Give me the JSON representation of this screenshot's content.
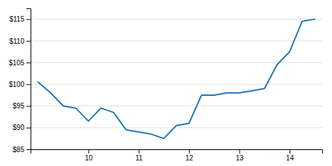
{
  "chart_data": {
    "type": "line",
    "x": [
      9.0,
      9.25,
      9.5,
      9.75,
      10.0,
      10.25,
      10.5,
      10.75,
      11.0,
      11.25,
      11.5,
      11.75,
      12.0,
      12.25,
      12.5,
      12.75,
      13.0,
      13.25,
      13.5,
      13.75,
      14.0,
      14.25,
      14.5
    ],
    "values": [
      100.5,
      98.0,
      95.0,
      94.5,
      91.5,
      94.5,
      93.5,
      89.5,
      89.0,
      88.5,
      87.5,
      90.5,
      91.0,
      97.5,
      97.5,
      98.0,
      98.0,
      98.5,
      99.0,
      104.5,
      107.5,
      114.5,
      115.0
    ],
    "xlim": [
      8.85,
      14.65
    ],
    "ylim": [
      85,
      117.5
    ],
    "xticks": [
      10,
      11,
      12,
      13,
      14
    ],
    "yticks": [
      {
        "value": 85,
        "label": "$85"
      },
      {
        "value": 90,
        "label": "$90"
      },
      {
        "value": 95,
        "label": "$95"
      },
      {
        "value": 100,
        "label": "$100"
      },
      {
        "value": 105,
        "label": "$105"
      },
      {
        "value": 110,
        "label": "$110"
      },
      {
        "value": 115,
        "label": "$115"
      }
    ],
    "grid": true
  }
}
